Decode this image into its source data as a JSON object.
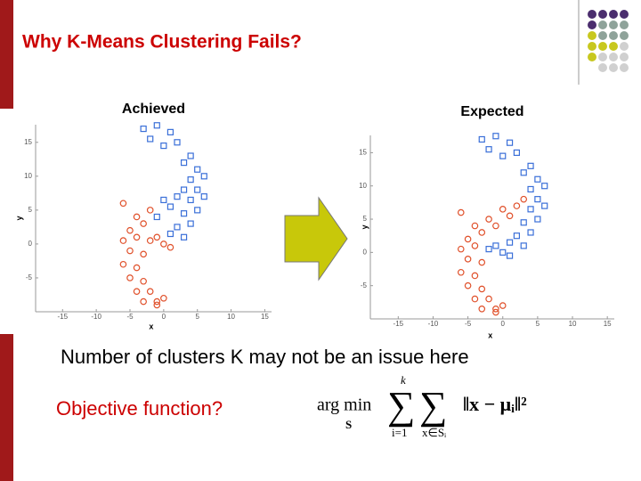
{
  "slide": {
    "title": "Why K-Means Clustering Fails?",
    "statement": "Number of clusters K may not be an issue here",
    "question": "Objective function?",
    "formula": {
      "operator": "arg min",
      "subscript": "S",
      "sum_symbol": "∑",
      "sum_upper": "k",
      "sum1_lower": "i=1",
      "sum2_lower": "x∈Sᵢ",
      "norm": "‖x − μᵢ‖²"
    }
  },
  "chart_data": [
    {
      "type": "scatter",
      "title": "Achieved",
      "x_label": "x",
      "y_label": "y",
      "xlim": [
        -19,
        16
      ],
      "ylim": [
        -10,
        17.6
      ],
      "xticks": [
        -15,
        -10,
        -5,
        0,
        5,
        10,
        15
      ],
      "yticks": [
        -5,
        0,
        5,
        10,
        15
      ],
      "series": [
        {
          "color": "#3a6fd8",
          "marker": "square",
          "x": [
            -3,
            -1,
            1,
            -2,
            2,
            0,
            4,
            3,
            5,
            6,
            4,
            5,
            6,
            4,
            5,
            3,
            4,
            2,
            1,
            3,
            3,
            2,
            0,
            1,
            -1
          ],
          "values": [
            17,
            17.5,
            16.5,
            15.5,
            15,
            14.5,
            13,
            12,
            11,
            10,
            9.5,
            8,
            7,
            6.5,
            5,
            4.5,
            3,
            2.5,
            1.5,
            1,
            8,
            7,
            6.5,
            5.5,
            4
          ]
        },
        {
          "color": "#e0502a",
          "marker": "circle",
          "x": [
            -1,
            0,
            -2,
            1,
            -2,
            -4,
            -3,
            -5,
            -4,
            -6,
            -5,
            -3,
            -6,
            -4,
            -5,
            -3,
            -4,
            -2,
            -1,
            0,
            -3,
            -6,
            -1
          ],
          "values": [
            1,
            0,
            0.5,
            -0.5,
            5,
            4,
            3,
            2,
            1,
            0.5,
            -1,
            -1.5,
            -3,
            -3.5,
            -5,
            -5.5,
            -7,
            -7,
            -8.5,
            -8,
            -8.5,
            6,
            -9
          ]
        }
      ]
    },
    {
      "type": "scatter",
      "title": "Expected",
      "x_label": "x",
      "y_label": "y",
      "xlim": [
        -19,
        16
      ],
      "ylim": [
        -10,
        17.6
      ],
      "xticks": [
        -15,
        -10,
        -5,
        0,
        5,
        10,
        15
      ],
      "yticks": [
        -5,
        0,
        5,
        10,
        15
      ],
      "series": [
        {
          "color": "#3a6fd8",
          "marker": "square",
          "x": [
            -3,
            -1,
            1,
            -2,
            2,
            0,
            4,
            3,
            5,
            6,
            4,
            5,
            6,
            4,
            5,
            3,
            4,
            2,
            1,
            3,
            -1,
            0,
            -2,
            1
          ],
          "values": [
            17,
            17.5,
            16.5,
            15.5,
            15,
            14.5,
            13,
            12,
            11,
            10,
            9.5,
            8,
            7,
            6.5,
            5,
            4.5,
            3,
            2.5,
            1.5,
            1,
            1,
            0,
            0.5,
            -0.5
          ]
        },
        {
          "color": "#e0502a",
          "marker": "circle",
          "x": [
            3,
            2,
            0,
            1,
            -2,
            -1,
            -4,
            -3,
            -5,
            -4,
            -6,
            -5,
            -3,
            -6,
            -4,
            -5,
            -3,
            -4,
            -2,
            -1,
            0,
            -3,
            -6,
            -1
          ],
          "values": [
            8,
            7,
            6.5,
            5.5,
            5,
            4,
            4,
            3,
            2,
            1,
            0.5,
            -1,
            -1.5,
            -3,
            -3.5,
            -5,
            -5.5,
            -7,
            -7,
            -8.5,
            -8,
            -8.5,
            6,
            -9
          ]
        }
      ]
    }
  ]
}
